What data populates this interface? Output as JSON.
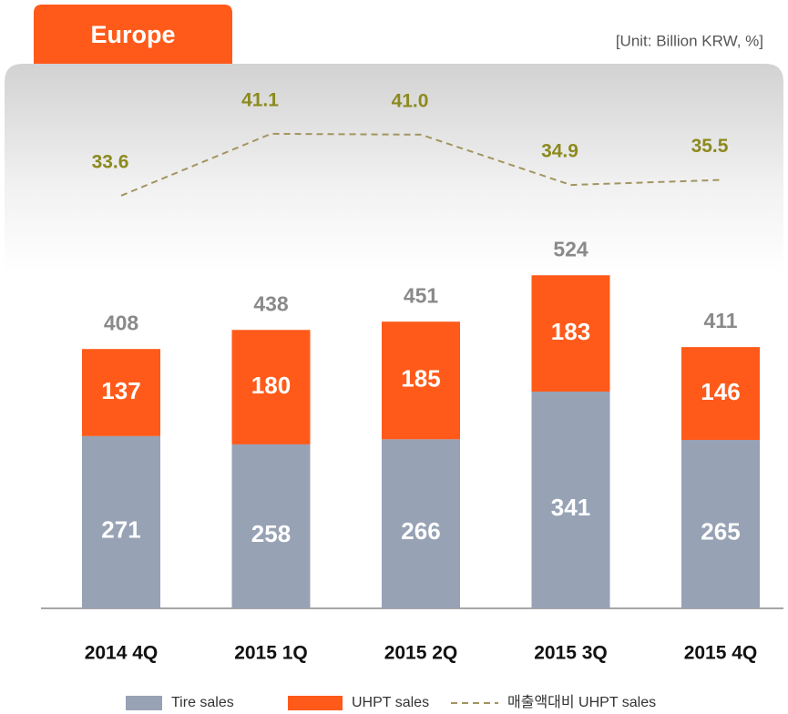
{
  "chart_data": {
    "type": "bar",
    "stacked": true,
    "title": "Europe",
    "subtitle": "[Unit: Billion KRW, %]",
    "categories": [
      "2014 4Q",
      "2015 1Q",
      "2015 2Q",
      "2015 3Q",
      "2015 4Q"
    ],
    "series": [
      {
        "name": "Tire sales",
        "color": "#97a2b5",
        "values": [
          271,
          258,
          266,
          341,
          265
        ]
      },
      {
        "name": "UHPT sales",
        "color": "#ff5a1a",
        "values": [
          137,
          180,
          185,
          183,
          146
        ]
      },
      {
        "name": "매출액대비 UHPT sales",
        "type": "line",
        "axis": "y2",
        "color": "#a39560",
        "dashed": true,
        "values": [
          33.6,
          41.1,
          41.0,
          34.9,
          35.5
        ],
        "value_labels": [
          "33.6",
          "41.1",
          "41.0",
          "34.9",
          "35.5"
        ]
      }
    ],
    "totals": [
      408,
      438,
      451,
      524,
      411
    ],
    "ylim": [
      0,
      600
    ],
    "y2lim": [
      20,
      45
    ],
    "legend": "bottom"
  }
}
